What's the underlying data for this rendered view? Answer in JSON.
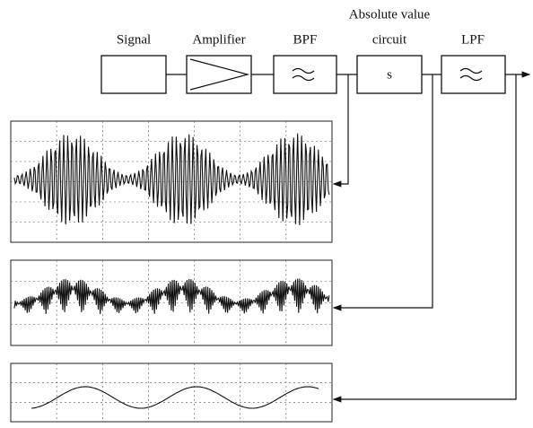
{
  "blocks": [
    {
      "label": [
        "Signal"
      ]
    },
    {
      "label": [
        "Amplifier"
      ]
    },
    {
      "label": [
        "BPF"
      ]
    },
    {
      "label": [
        "Absolute value",
        "circuit"
      ],
      "symbol": "s"
    },
    {
      "label": [
        "LPF"
      ]
    }
  ]
}
